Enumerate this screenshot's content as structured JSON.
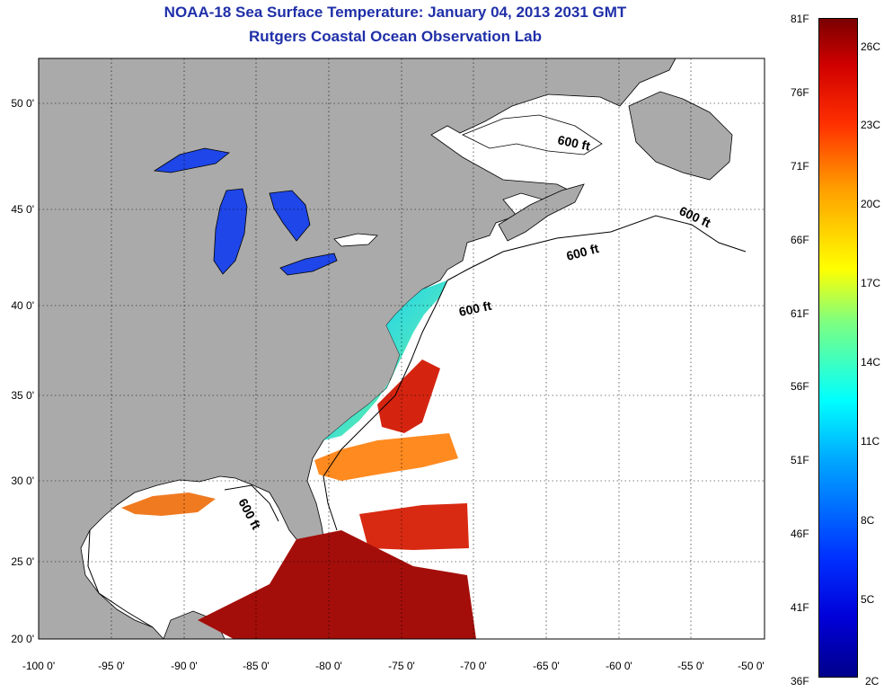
{
  "title": "NOAA-18 Sea Surface Temperature:  January 04, 2013 2031 GMT",
  "subtitle": "Rutgers Coastal Ocean Observation Lab",
  "map": {
    "lon_ticks": [
      "-100 0'",
      "-95 0'",
      "-90 0'",
      "-85 0'",
      "-80 0'",
      "-75 0'",
      "-70 0'",
      "-65 0'",
      "-60 0'",
      "-55 0'",
      "-50 0'"
    ],
    "lat_ticks": [
      "50 0'",
      "45 0'",
      "40 0'",
      "35 0'",
      "30 0'",
      "25 0'",
      "20 0'"
    ],
    "contour_labels": [
      "600 ft",
      "600 ft",
      "600 ft",
      "600 ft",
      "600 ft"
    ],
    "colors": {
      "land": "#aaaaaa",
      "ocean_nodata": "#ffffff",
      "lake": "#1e46e8"
    }
  },
  "colorbar": {
    "fahrenheit_labels": [
      "81F",
      "76F",
      "71F",
      "66F",
      "61F",
      "56F",
      "51F",
      "46F",
      "41F",
      "36F"
    ],
    "celsius_labels": [
      "26C",
      "23C",
      "20C",
      "17C",
      "14C",
      "11C",
      "8C",
      "5C",
      "2C"
    ],
    "range_f": [
      36,
      81
    ]
  }
}
